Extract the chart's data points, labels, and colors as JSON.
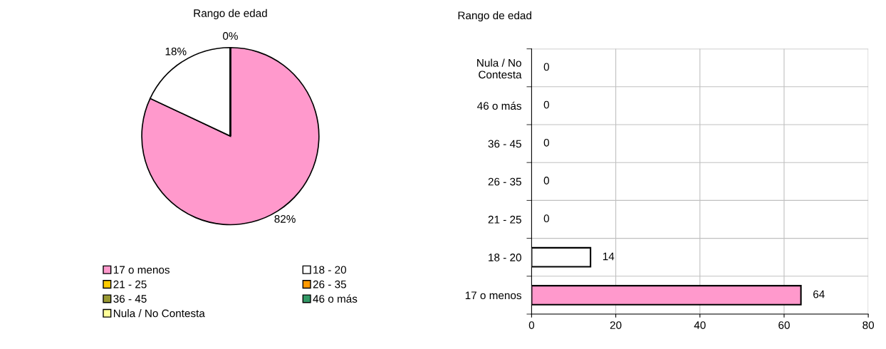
{
  "chart_data": [
    {
      "type": "pie",
      "title": "Rango de edad",
      "categories": [
        "17 o menos",
        "18 - 20",
        "21 - 25",
        "26 - 35",
        "36 - 45",
        "46 o más",
        "Nula / No Contesta"
      ],
      "values": [
        82,
        18,
        0,
        0,
        0,
        0,
        0
      ],
      "value_labels": [
        "82%",
        "18%",
        "0%",
        null,
        null,
        null,
        null
      ],
      "colors": [
        "#ff99cc",
        "#ffffff",
        "#ffcc00",
        "#ff9900",
        "#999933",
        "#339966",
        "#ffff99"
      ],
      "legend": "bottom"
    },
    {
      "type": "bar",
      "orientation": "horizontal",
      "title": "Rango de edad",
      "categories": [
        "Nula / No\nContesta",
        "46 o más",
        "36 - 45",
        "26 - 35",
        "21 - 25",
        "18 - 20",
        "17 o menos"
      ],
      "values": [
        0,
        0,
        0,
        0,
        0,
        14,
        64
      ],
      "colors": [
        null,
        null,
        null,
        null,
        null,
        "#ffffff",
        "#ff99cc"
      ],
      "xlim": [
        0,
        80
      ],
      "xticks": [
        0,
        20,
        40,
        60,
        80
      ],
      "grid": true,
      "data_labels": true
    }
  ]
}
